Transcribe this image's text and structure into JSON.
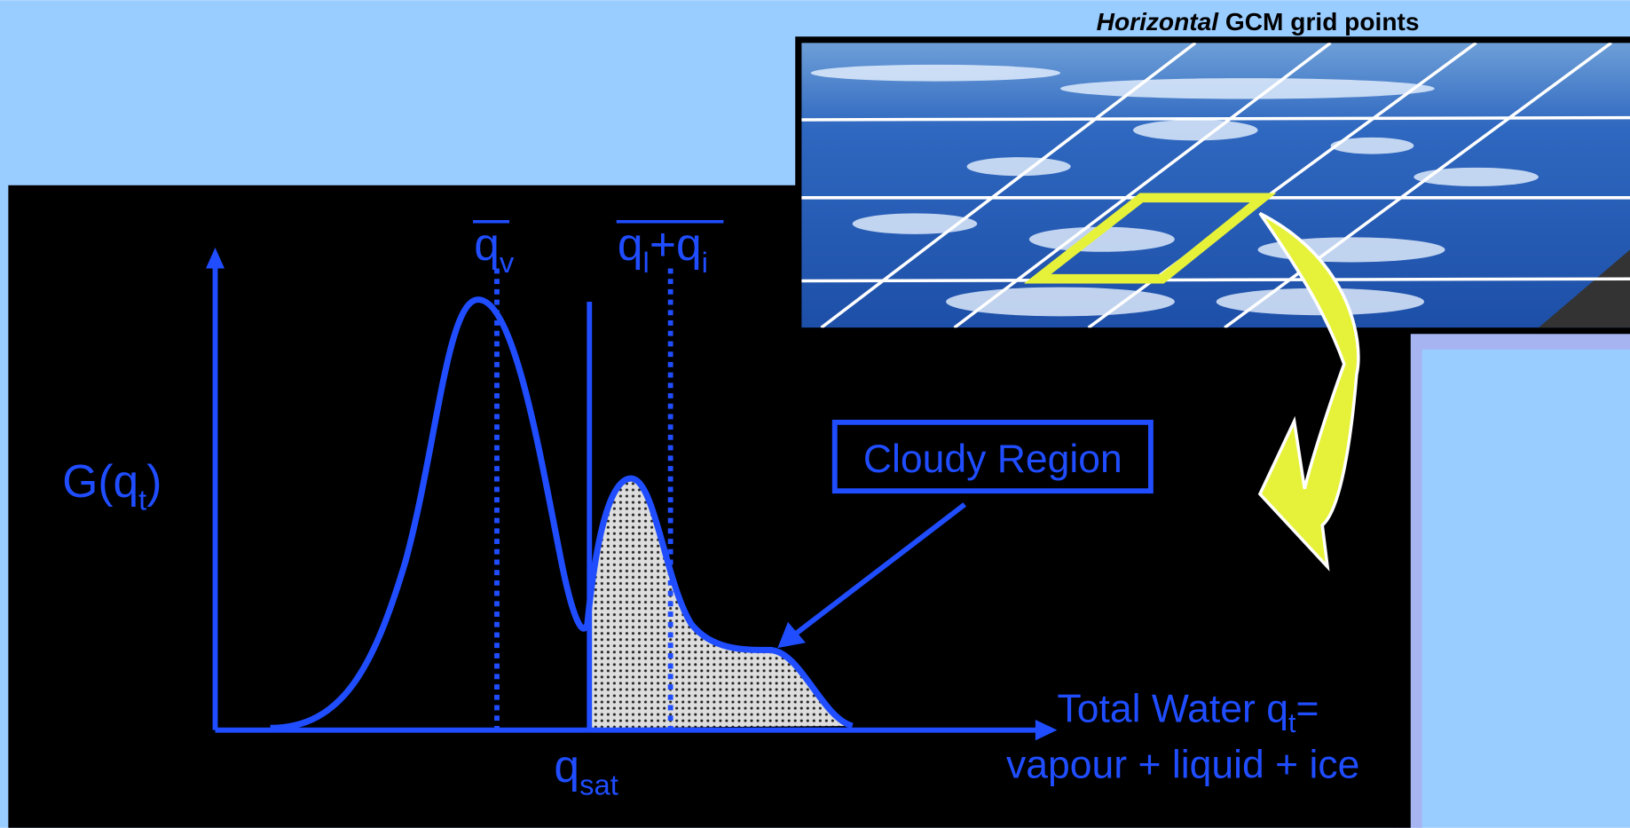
{
  "image_caption": {
    "emphasis": "Horizontal",
    "rest": "GCM grid points"
  },
  "y_axis_label": {
    "base": "G(q",
    "sub": "t",
    "close": ")"
  },
  "markers": [
    {
      "base": "q",
      "sub": "v"
    },
    {
      "base": "q",
      "sub": "l",
      "mid": "+q",
      "sub2": "i"
    }
  ],
  "saturation_label": {
    "base": "q",
    "sub": "sat"
  },
  "callout": "Cloudy Region",
  "x_axis_label": {
    "base": "Total Water q",
    "sub": "t",
    "end": "=",
    "line2": "vapour + liquid + ice"
  }
}
